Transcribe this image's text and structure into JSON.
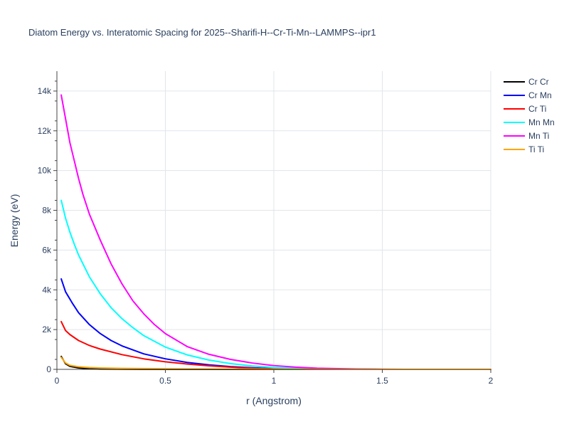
{
  "chart_data": {
    "type": "line",
    "title": "Diatom Energy vs. Interatomic Spacing for 2025--Sharifi-H--Cr-Ti-Mn--LAMMPS--ipr1",
    "xlabel": "r (Angstrom)",
    "ylabel": "Energy (eV)",
    "xlim": [
      0,
      2
    ],
    "ylim": [
      0,
      15000
    ],
    "x_ticks": [
      {
        "value": 0,
        "label": "0"
      },
      {
        "value": 0.5,
        "label": "0.5"
      },
      {
        "value": 1,
        "label": "1"
      },
      {
        "value": 1.5,
        "label": "1.5"
      },
      {
        "value": 2,
        "label": "2"
      }
    ],
    "y_ticks": [
      {
        "value": 0,
        "label": "0"
      },
      {
        "value": 2000,
        "label": "2k"
      },
      {
        "value": 4000,
        "label": "4k"
      },
      {
        "value": 6000,
        "label": "6k"
      },
      {
        "value": 8000,
        "label": "8k"
      },
      {
        "value": 10000,
        "label": "10k"
      },
      {
        "value": 12000,
        "label": "12k"
      },
      {
        "value": 14000,
        "label": "14k"
      }
    ],
    "grid": true,
    "legend_position": "top-right",
    "series": [
      {
        "name": "Cr Cr",
        "color": "#000000",
        "x": [
          0.02,
          0.04,
          0.06,
          0.1,
          0.15,
          0.2,
          0.3,
          0.4,
          0.5,
          0.7,
          1.0,
          1.5,
          2.0
        ],
        "y": [
          650,
          280,
          150,
          70,
          30,
          15,
          5,
          2,
          0,
          0,
          0,
          0,
          0
        ]
      },
      {
        "name": "Cr Mn",
        "color": "#0000ff",
        "x": [
          0.02,
          0.04,
          0.07,
          0.1,
          0.15,
          0.2,
          0.25,
          0.3,
          0.4,
          0.5,
          0.6,
          0.7,
          0.8,
          0.9,
          1.0,
          1.2,
          1.5,
          2.0
        ],
        "y": [
          4550,
          3900,
          3350,
          2850,
          2250,
          1800,
          1450,
          1180,
          780,
          530,
          350,
          230,
          140,
          80,
          40,
          10,
          0,
          0
        ]
      },
      {
        "name": "Cr Ti",
        "color": "#ff0000",
        "x": [
          0.02,
          0.04,
          0.06,
          0.1,
          0.15,
          0.2,
          0.3,
          0.4,
          0.5,
          0.6,
          0.7,
          0.8,
          0.9,
          1.0,
          1.2,
          1.5,
          2.0
        ],
        "y": [
          2400,
          1950,
          1750,
          1450,
          1200,
          1020,
          740,
          530,
          380,
          270,
          180,
          110,
          60,
          30,
          8,
          0,
          0
        ]
      },
      {
        "name": "Mn Mn",
        "color": "#00ffff",
        "x": [
          0.02,
          0.04,
          0.06,
          0.08,
          0.1,
          0.15,
          0.2,
          0.25,
          0.3,
          0.35,
          0.4,
          0.5,
          0.6,
          0.7,
          0.8,
          0.9,
          1.0,
          1.2,
          1.5,
          2.0
        ],
        "y": [
          8500,
          7600,
          6900,
          6300,
          5750,
          4650,
          3800,
          3100,
          2550,
          2100,
          1700,
          1120,
          730,
          470,
          290,
          170,
          90,
          25,
          0,
          0
        ]
      },
      {
        "name": "Mn Ti",
        "color": "#ff00ff",
        "x": [
          0.02,
          0.04,
          0.06,
          0.08,
          0.1,
          0.12,
          0.15,
          0.2,
          0.25,
          0.3,
          0.35,
          0.4,
          0.45,
          0.5,
          0.6,
          0.7,
          0.8,
          0.9,
          1.0,
          1.1,
          1.2,
          1.4,
          1.6,
          2.0
        ],
        "y": [
          13800,
          12600,
          11400,
          10500,
          9600,
          8800,
          7800,
          6500,
          5300,
          4300,
          3450,
          2800,
          2250,
          1800,
          1150,
          760,
          500,
          320,
          190,
          110,
          60,
          15,
          0,
          0
        ]
      },
      {
        "name": "Ti Ti",
        "color": "#ffa500",
        "x": [
          0.02,
          0.04,
          0.06,
          0.1,
          0.15,
          0.2,
          0.3,
          0.5,
          1.0,
          1.5,
          2.0
        ],
        "y": [
          600,
          320,
          200,
          130,
          90,
          70,
          50,
          30,
          10,
          0,
          0
        ]
      }
    ]
  }
}
